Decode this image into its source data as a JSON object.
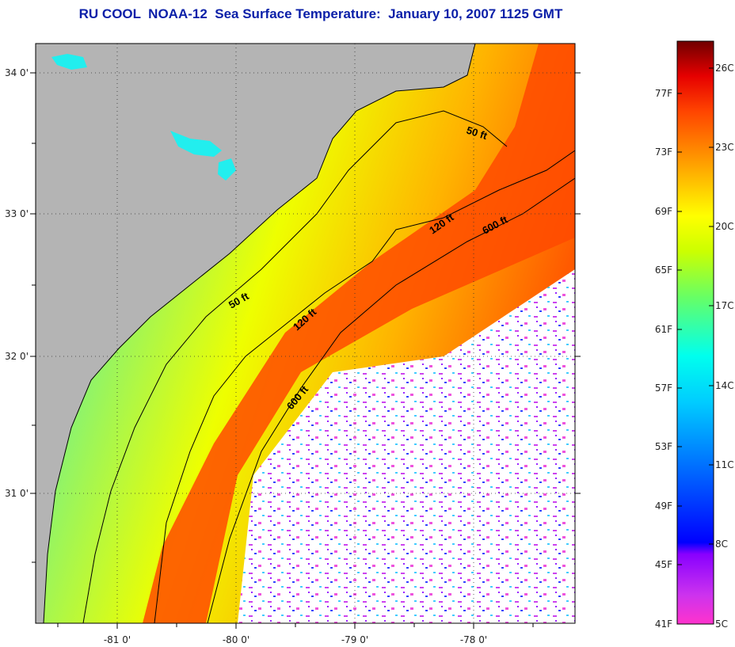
{
  "title": "RU COOL  NOAA-12  Sea Surface Temperature:  January 10, 2007 1125 GMT",
  "map": {
    "lat_labels": [
      "34 0'",
      "33 0'",
      "32 0'",
      "31 0'"
    ],
    "lon_labels": [
      "-81 0'",
      "-80 0'",
      "-79 0'",
      "-78 0'"
    ],
    "depth_contours": [
      "50 ft",
      "120 ft",
      "600 ft"
    ],
    "depth_labels": [
      "50 ft",
      "50 ft",
      "120 ft",
      "120 ft",
      "600 ft",
      "600 ft"
    ],
    "colors": {
      "land": "#b4b4b4",
      "cloud": "#ffffff",
      "coastline": "#000000"
    }
  },
  "colorbar": {
    "fahrenheit_labels": [
      "77F",
      "73F",
      "69F",
      "65F",
      "61F",
      "57F",
      "53F",
      "49F",
      "45F",
      "41F"
    ],
    "celsius_labels": [
      "26C",
      "23C",
      "20C",
      "17C",
      "14C",
      "11C",
      "8C",
      "5C"
    ],
    "gradient_colors": [
      "#ff33cc",
      "#9900ff",
      "#0000ff",
      "#0099ff",
      "#00ffff",
      "#33ff99",
      "#ccff00",
      "#ffff00",
      "#ff9900",
      "#ff3300",
      "#e60000",
      "#7a0000"
    ]
  }
}
